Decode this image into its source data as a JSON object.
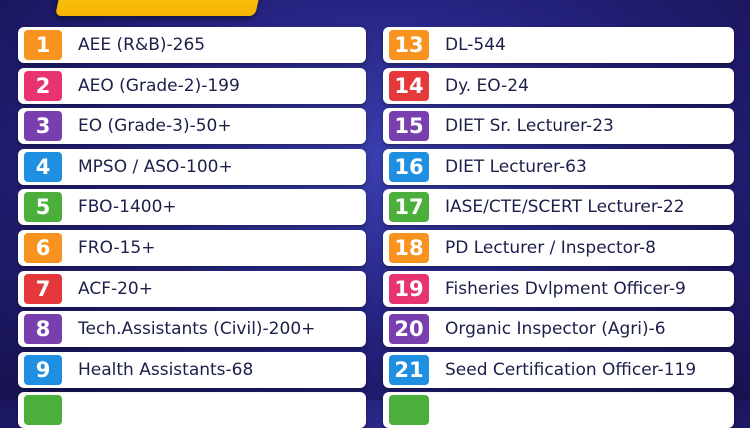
{
  "columns": [
    {
      "items": [
        {
          "number": "1",
          "label": "AEE (R&B)-265",
          "color": "#f7931e"
        },
        {
          "number": "2",
          "label": "AEO (Grade-2)-199",
          "color": "#e8336f"
        },
        {
          "number": "3",
          "label": "EO (Grade-3)-50+",
          "color": "#7a3fae"
        },
        {
          "number": "4",
          "label": "MPSO / ASO-100+",
          "color": "#1e8fe1"
        },
        {
          "number": "5",
          "label": "FBO-1400+",
          "color": "#4caf3c"
        },
        {
          "number": "6",
          "label": "FRO-15+",
          "color": "#f7931e"
        },
        {
          "number": "7",
          "label": "ACF-20+",
          "color": "#e5383b"
        },
        {
          "number": "8",
          "label": "Tech.Assistants (Civil)-200+",
          "color": "#7a3fae"
        },
        {
          "number": "9",
          "label": "Health Assistants-68",
          "color": "#1e8fe1"
        }
      ]
    },
    {
      "items": [
        {
          "number": "13",
          "label": "DL-544",
          "color": "#f7931e"
        },
        {
          "number": "14",
          "label": "Dy. EO-24",
          "color": "#e5383b"
        },
        {
          "number": "15",
          "label": "DIET Sr. Lecturer-23",
          "color": "#7a3fae"
        },
        {
          "number": "16",
          "label": "DIET Lecturer-63",
          "color": "#1e8fe1"
        },
        {
          "number": "17",
          "label": "IASE/CTE/SCERT Lecturer-22",
          "color": "#4caf3c"
        },
        {
          "number": "18",
          "label": "PD Lecturer / Inspector-8",
          "color": "#f7931e"
        },
        {
          "number": "19",
          "label": "Fisheries Dvlpment Officer-9",
          "color": "#e8336f"
        },
        {
          "number": "20",
          "label": "Organic Inspector (Agri)-6",
          "color": "#7a3fae"
        },
        {
          "number": "21",
          "label": "Seed Certification Officer-119",
          "color": "#1e8fe1"
        }
      ]
    }
  ]
}
